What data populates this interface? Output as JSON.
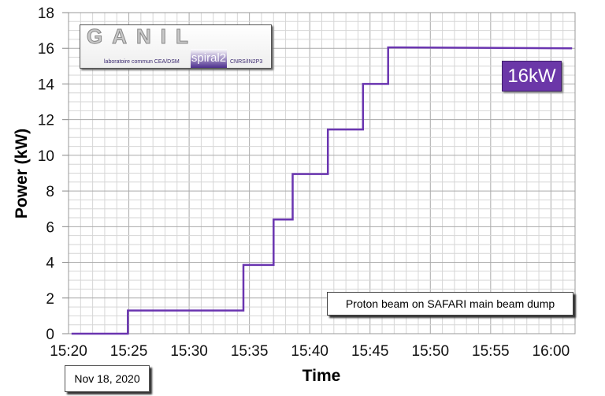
{
  "chart_data": {
    "type": "line",
    "xlabel": "Time",
    "ylabel": "Power (kW)",
    "xlim": [
      "15:20",
      "16:02"
    ],
    "ylim": [
      0,
      18
    ],
    "x_ticks": [
      "15:20",
      "15:25",
      "15:30",
      "15:35",
      "15:40",
      "15:45",
      "15:50",
      "15:55",
      "16:00"
    ],
    "y_ticks": [
      0,
      2,
      4,
      6,
      8,
      10,
      12,
      14,
      16,
      18
    ],
    "grid": true,
    "series": [
      {
        "color": "#6a35b0",
        "points": [
          [
            "15:20:15",
            0
          ],
          [
            "15:24:55",
            0
          ],
          [
            "15:24:55",
            1.3
          ],
          [
            "15:34:30",
            1.3
          ],
          [
            "15:34:30",
            3.85
          ],
          [
            "15:37:00",
            3.85
          ],
          [
            "15:37:00",
            6.4
          ],
          [
            "15:38:35",
            6.4
          ],
          [
            "15:38:35",
            8.95
          ],
          [
            "15:41:30",
            8.95
          ],
          [
            "15:41:30",
            11.45
          ],
          [
            "15:44:25",
            11.45
          ],
          [
            "15:44:25",
            14.0
          ],
          [
            "15:46:30",
            14.0
          ],
          [
            "15:46:30",
            16.05
          ],
          [
            "16:01:45",
            16.0
          ]
        ]
      }
    ],
    "annotations": {
      "power_label": "16kW",
      "description": "Proton beam on SAFARI main beam dump",
      "date": "Nov 18, 2020"
    }
  },
  "logo": {
    "name": "GANIL",
    "sub": "spiral2",
    "left_text": "laboratoire commun CEA/DSM",
    "right_text": "CNRS/IN2P3"
  },
  "colors": {
    "line": "#6a35b0",
    "label_bg": "#6b37a8"
  }
}
